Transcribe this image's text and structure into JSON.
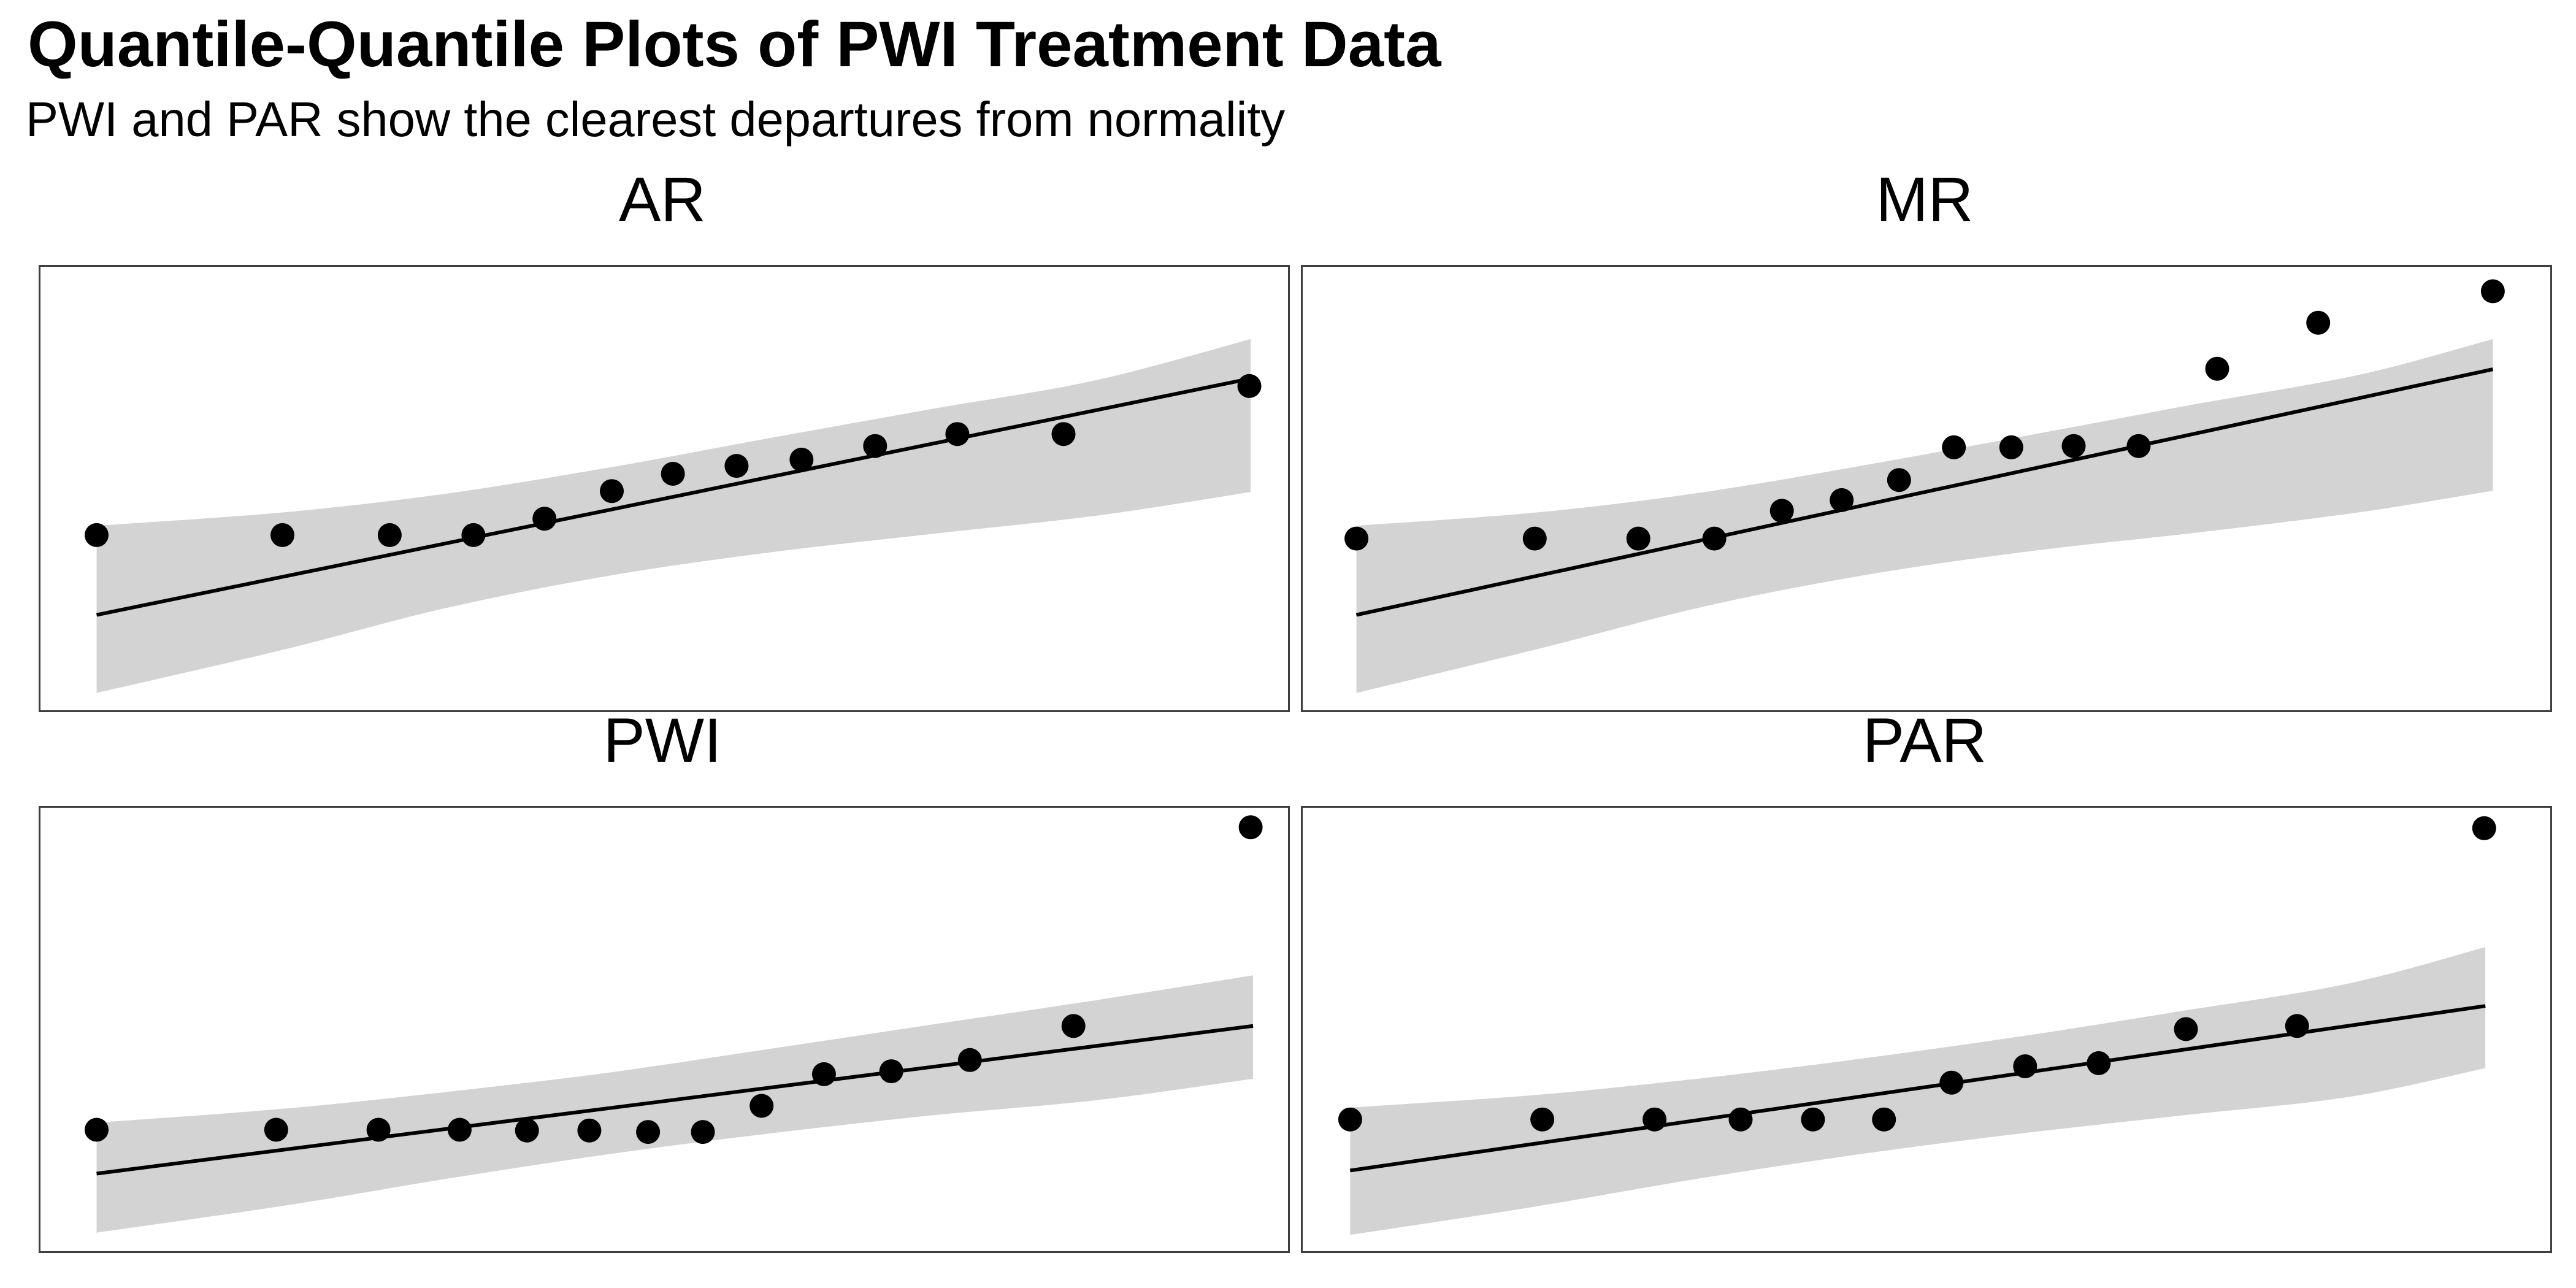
{
  "header": {
    "title": "Quantile-Quantile Plots of PWI Treatment Data",
    "subtitle": "PWI and PAR show the clearest departures from normality"
  },
  "colors": {
    "background": "#ffffff",
    "confidence_band": "#d3d3d3",
    "qq_line": "#000000",
    "point": "#000000",
    "panel_border": "#3e3e3e",
    "text": "#000000"
  },
  "chart_data": [
    {
      "type": "scatter",
      "subtype": "qq-plot",
      "title": "AR",
      "n_points": 13,
      "note": "coordinates are normalized fractions of the panel box, x rightward, y downward; no axis ticks or tick labels are drawn",
      "points": [
        [
          0.045,
          0.605
        ],
        [
          0.194,
          0.605
        ],
        [
          0.28,
          0.605
        ],
        [
          0.347,
          0.605
        ],
        [
          0.404,
          0.568
        ],
        [
          0.458,
          0.506
        ],
        [
          0.507,
          0.467
        ],
        [
          0.558,
          0.449
        ],
        [
          0.61,
          0.435
        ],
        [
          0.669,
          0.404
        ],
        [
          0.735,
          0.377
        ],
        [
          0.82,
          0.377
        ],
        [
          0.969,
          0.269
        ]
      ],
      "qq_line": {
        "x1": 0.045,
        "y1": 0.785,
        "x2": 0.97,
        "y2": 0.252
      },
      "confidence_band": {
        "x": [
          0.045,
          0.194,
          0.324,
          0.455,
          0.585,
          0.716,
          0.847,
          0.97
        ],
        "top": [
          0.584,
          0.554,
          0.512,
          0.453,
          0.386,
          0.32,
          0.255,
          0.163
        ],
        "bottom": [
          0.961,
          0.864,
          0.77,
          0.697,
          0.644,
          0.602,
          0.561,
          0.508
        ]
      },
      "axes": {
        "ticks": "none",
        "labels": "none"
      }
    },
    {
      "type": "scatter",
      "subtype": "qq-plot",
      "title": "MR",
      "n_points": 14,
      "note": "coordinates are normalized fractions of the panel box, x rightward, y downward; no axis ticks or tick labels are drawn",
      "points": [
        [
          0.043,
          0.613
        ],
        [
          0.186,
          0.613
        ],
        [
          0.269,
          0.613
        ],
        [
          0.33,
          0.613
        ],
        [
          0.384,
          0.55
        ],
        [
          0.432,
          0.526
        ],
        [
          0.478,
          0.481
        ],
        [
          0.522,
          0.407
        ],
        [
          0.568,
          0.407
        ],
        [
          0.618,
          0.404
        ],
        [
          0.67,
          0.404
        ],
        [
          0.733,
          0.23
        ],
        [
          0.814,
          0.126
        ],
        [
          0.954,
          0.055
        ]
      ],
      "qq_line": {
        "x1": 0.043,
        "y1": 0.785,
        "x2": 0.954,
        "y2": 0.231
      },
      "confidence_band": {
        "x": [
          0.043,
          0.191,
          0.322,
          0.453,
          0.584,
          0.715,
          0.846,
          0.954
        ],
        "top": [
          0.584,
          0.553,
          0.508,
          0.446,
          0.379,
          0.31,
          0.244,
          0.163
        ],
        "bottom": [
          0.961,
          0.86,
          0.766,
          0.694,
          0.641,
          0.6,
          0.554,
          0.505
        ]
      },
      "axes": {
        "ticks": "none",
        "labels": "none"
      }
    },
    {
      "type": "scatter",
      "subtype": "qq-plot",
      "title": "PWI",
      "n_points": 14,
      "note": "coordinates are normalized fractions of the panel box, x rightward, y downward; last point is a high outlier above the band; no axis ticks or tick labels are drawn",
      "points": [
        [
          0.045,
          0.726
        ],
        [
          0.189,
          0.726
        ],
        [
          0.271,
          0.726
        ],
        [
          0.336,
          0.726
        ],
        [
          0.39,
          0.728
        ],
        [
          0.44,
          0.728
        ],
        [
          0.487,
          0.731
        ],
        [
          0.531,
          0.731
        ],
        [
          0.578,
          0.672
        ],
        [
          0.628,
          0.601
        ],
        [
          0.682,
          0.594
        ],
        [
          0.745,
          0.569
        ],
        [
          0.828,
          0.492
        ],
        [
          0.97,
          0.044
        ]
      ],
      "qq_line": {
        "x1": 0.045,
        "y1": 0.825,
        "x2": 0.972,
        "y2": 0.492
      },
      "confidence_band": {
        "x": [
          0.045,
          0.194,
          0.325,
          0.456,
          0.586,
          0.717,
          0.848,
          0.972
        ],
        "top": [
          0.71,
          0.679,
          0.641,
          0.597,
          0.543,
          0.488,
          0.433,
          0.378
        ],
        "bottom": [
          0.958,
          0.898,
          0.837,
          0.781,
          0.734,
          0.693,
          0.659,
          0.611
        ]
      },
      "axes": {
        "ticks": "none",
        "labels": "none"
      }
    },
    {
      "type": "scatter",
      "subtype": "qq-plot",
      "title": "PAR",
      "n_points": 12,
      "note": "coordinates are normalized fractions of the panel box, x rightward, y downward; last point is a high outlier above the band; no axis ticks or tick labels are drawn",
      "points": [
        [
          0.038,
          0.703
        ],
        [
          0.192,
          0.703
        ],
        [
          0.282,
          0.703
        ],
        [
          0.351,
          0.703
        ],
        [
          0.409,
          0.703
        ],
        [
          0.466,
          0.703
        ],
        [
          0.52,
          0.62
        ],
        [
          0.579,
          0.583
        ],
        [
          0.638,
          0.576
        ],
        [
          0.708,
          0.499
        ],
        [
          0.797,
          0.492
        ],
        [
          0.947,
          0.046
        ]
      ],
      "qq_line": {
        "x1": 0.038,
        "y1": 0.818,
        "x2": 0.948,
        "y2": 0.447
      },
      "confidence_band": {
        "x": [
          0.038,
          0.185,
          0.316,
          0.447,
          0.577,
          0.708,
          0.839,
          0.948
        ],
        "top": [
          0.676,
          0.648,
          0.611,
          0.566,
          0.515,
          0.457,
          0.396,
          0.314
        ],
        "bottom": [
          0.963,
          0.9,
          0.837,
          0.781,
          0.734,
          0.693,
          0.652,
          0.587
        ]
      },
      "axes": {
        "ticks": "none",
        "labels": "none"
      }
    }
  ]
}
